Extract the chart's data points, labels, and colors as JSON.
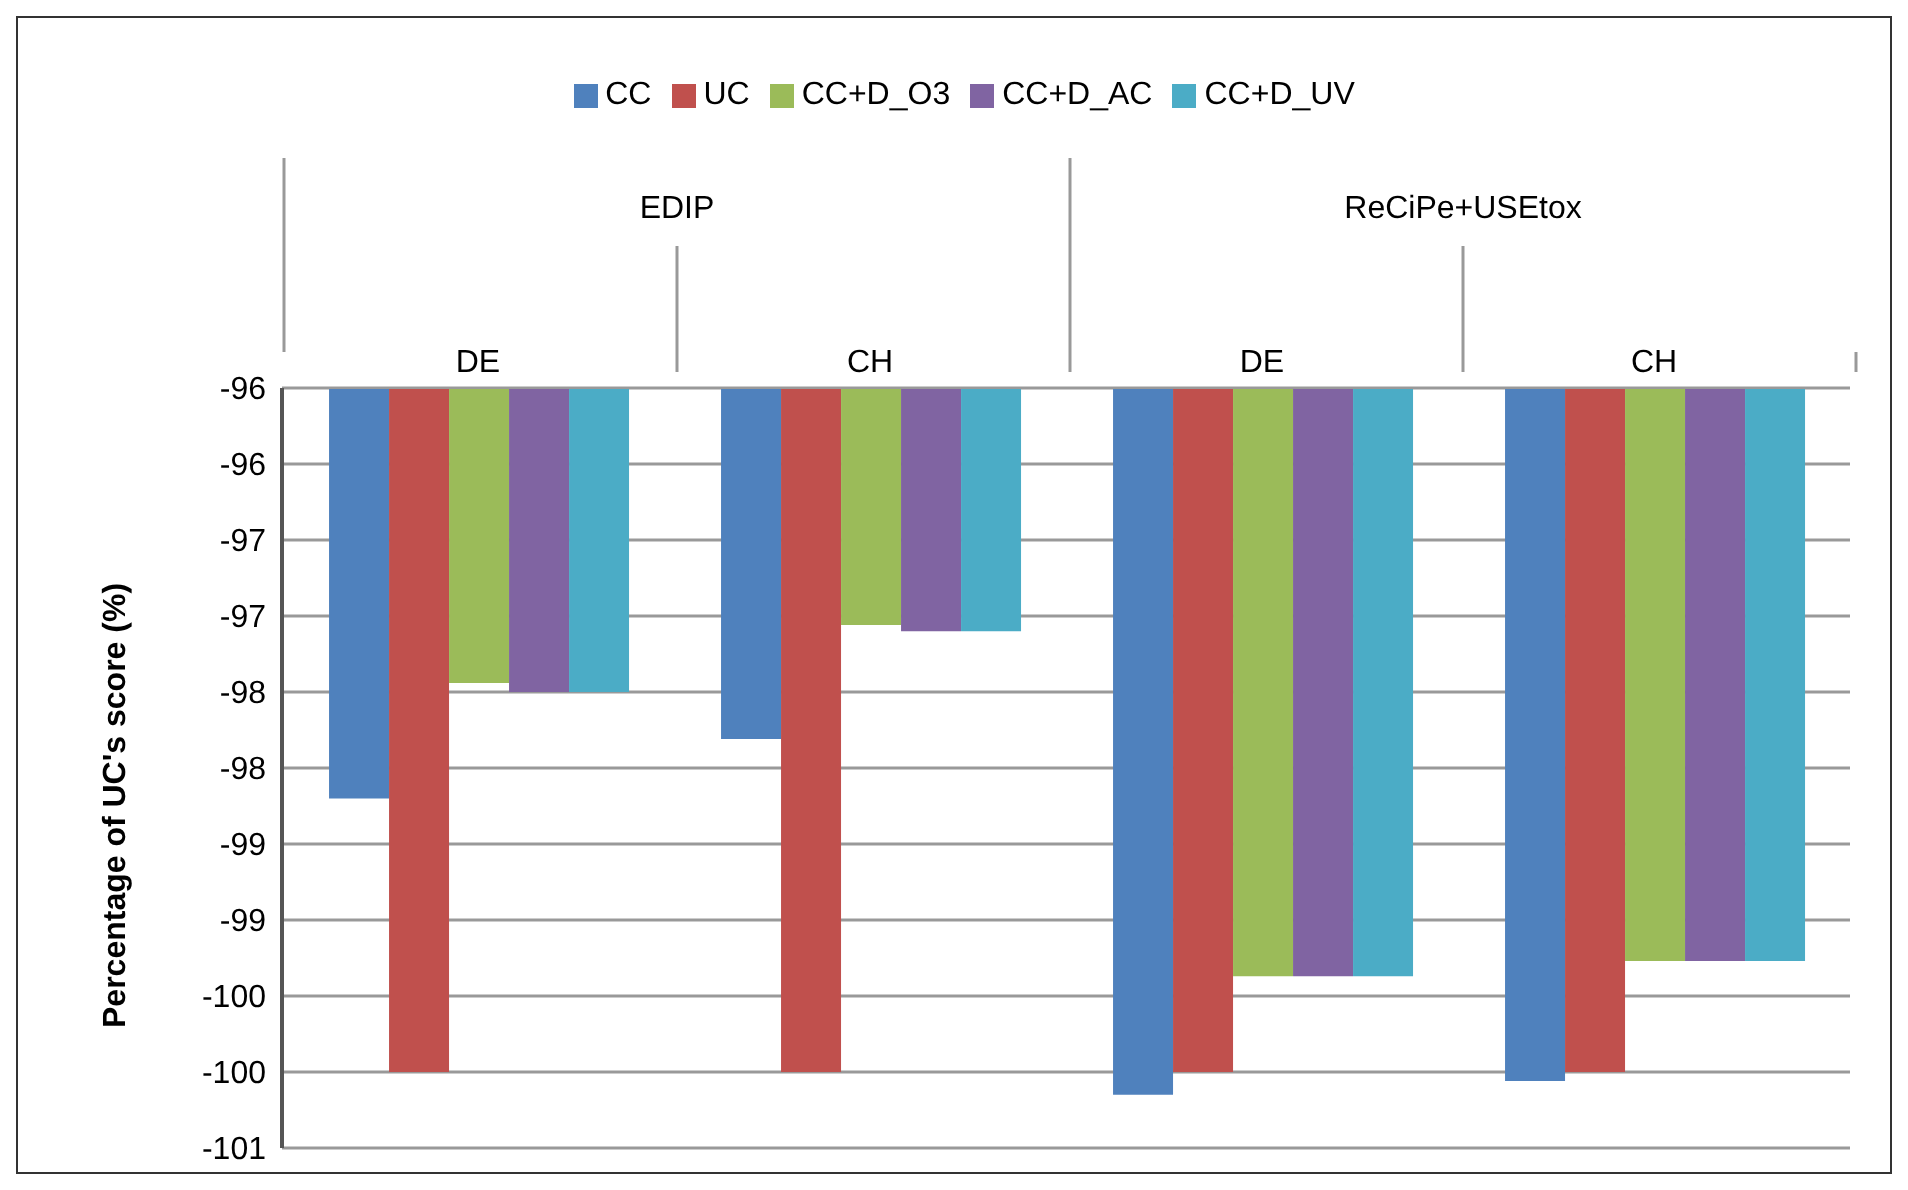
{
  "chart_data": {
    "type": "bar",
    "ylabel": "Percentage of UC's score (%)",
    "categories": [
      "DE",
      "CH",
      "DE",
      "CH"
    ],
    "annotations": [
      "EDIP",
      "ReCiPe+USEtox"
    ],
    "series": [
      {
        "name": "CC",
        "color": "#4f81bd",
        "values": [
          -98.2,
          -97.81,
          -100.15,
          -100.06
        ]
      },
      {
        "name": "UC",
        "color": "#c0504d",
        "values": [
          -100,
          -100,
          -100,
          -100
        ]
      },
      {
        "name": "CC+D_O3",
        "color": "#9bbb59",
        "values": [
          -97.44,
          -97.06,
          -99.37,
          -99.27
        ]
      },
      {
        "name": "CC+D_AC",
        "color": "#8064a2",
        "values": [
          -97.5,
          -97.1,
          -99.37,
          -99.27
        ]
      },
      {
        "name": "CC+D_UV",
        "color": "#4bacc6",
        "values": [
          -97.5,
          -97.1,
          -99.37,
          -99.27
        ]
      }
    ],
    "ylim": [
      -100.5,
      -95.5
    ],
    "yticks": [
      {
        "value": -95.5,
        "label": "-96"
      },
      {
        "value": -96,
        "label": "-96"
      },
      {
        "value": -96.5,
        "label": "-97"
      },
      {
        "value": -97,
        "label": "-97"
      },
      {
        "value": -97.5,
        "label": "-98"
      },
      {
        "value": -98,
        "label": "-98"
      },
      {
        "value": -98.5,
        "label": "-99"
      },
      {
        "value": -99,
        "label": "-99"
      },
      {
        "value": -99.5,
        "label": "-100"
      },
      {
        "value": -100,
        "label": "-100"
      },
      {
        "value": -100.5,
        "label": "-101"
      }
    ],
    "grid": "y",
    "legend": "top"
  }
}
